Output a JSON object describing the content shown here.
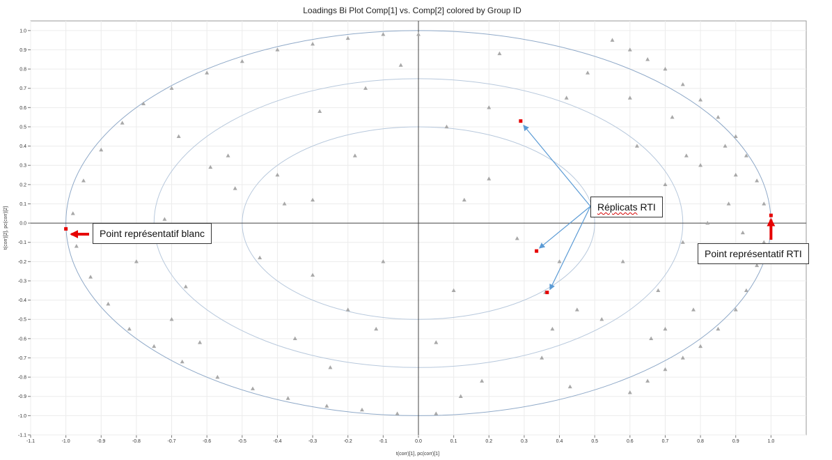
{
  "chart_data": {
    "type": "scatter",
    "title": "Loadings Bi Plot Comp[1] vs. Comp[2] colored by Group ID",
    "xlabel": "t(corr)[1], pc(corr)[1]",
    "ylabel": "t(corr)[2], pc(corr)[2]",
    "xlim": [
      -1.1,
      1.1
    ],
    "ylim": [
      -1.1,
      1.05
    ],
    "x_ticks": [
      -1.1,
      -1.0,
      -0.9,
      -0.8,
      -0.7,
      -0.6,
      -0.5,
      -0.4,
      -0.3,
      -0.2,
      -0.1,
      0.0,
      0.1,
      0.2,
      0.3,
      0.4,
      0.5,
      0.6,
      0.7,
      0.8,
      0.9,
      1.0
    ],
    "x_tick_labels": [
      "-1.1",
      "-1.0",
      "-0.9",
      "-0.8",
      "-0.7",
      "-0.6",
      "-0.5",
      "-0.4",
      "-0.3",
      "-0.2",
      "-0.1",
      "0.0",
      "0.1",
      "0.2",
      "0.3",
      "0.4",
      "0.5",
      "0.6",
      "0.7",
      "0.8",
      "0.9",
      "1.0"
    ],
    "y_ticks": [
      1.0,
      0.9,
      0.8,
      0.7,
      0.6,
      0.5,
      0.4,
      0.3,
      0.2,
      0.1,
      0.0,
      -0.1,
      -0.2,
      -0.3,
      -0.4,
      -0.5,
      -0.6,
      -0.7,
      -0.8,
      -0.9,
      -1.0,
      -1.1
    ],
    "y_tick_labels": [
      "1.0",
      "0.9",
      "0.8",
      "0.7",
      "0.6",
      "0.5",
      "0.4",
      "0.3",
      "0.2",
      "0.1",
      "0.0",
      "-0.1",
      "-0.2",
      "-0.3",
      "-0.4",
      "-0.5",
      "-0.6",
      "-0.7",
      "-0.8",
      "-0.9",
      "-1.0",
      "-1.1"
    ],
    "grid": true,
    "correlation_ellipse_radii": [
      1.0,
      0.75,
      0.5
    ],
    "series": [
      {
        "color": "#a8a8a8",
        "marker": "triangle",
        "points": [
          [
            -0.98,
            0.05
          ],
          [
            -0.97,
            -0.12
          ],
          [
            -0.95,
            0.22
          ],
          [
            -0.93,
            -0.28
          ],
          [
            -0.9,
            0.38
          ],
          [
            -0.88,
            -0.42
          ],
          [
            -0.84,
            0.52
          ],
          [
            -0.82,
            -0.55
          ],
          [
            -0.78,
            0.62
          ],
          [
            -0.75,
            -0.64
          ],
          [
            -0.7,
            0.7
          ],
          [
            -0.67,
            -0.72
          ],
          [
            -0.6,
            0.78
          ],
          [
            -0.57,
            -0.8
          ],
          [
            -0.5,
            0.84
          ],
          [
            -0.47,
            -0.86
          ],
          [
            -0.4,
            0.9
          ],
          [
            -0.37,
            -0.91
          ],
          [
            -0.3,
            0.93
          ],
          [
            -0.26,
            -0.95
          ],
          [
            -0.2,
            0.96
          ],
          [
            -0.16,
            -0.97
          ],
          [
            -0.1,
            0.98
          ],
          [
            -0.06,
            -0.99
          ],
          [
            -0.72,
            0.02
          ],
          [
            -0.66,
            -0.33
          ],
          [
            -0.59,
            0.29
          ],
          [
            -0.54,
            0.35
          ],
          [
            -0.45,
            -0.18
          ],
          [
            -0.4,
            0.25
          ],
          [
            -0.38,
            0.1
          ],
          [
            -0.3,
            0.12
          ],
          [
            -0.3,
            -0.27
          ],
          [
            -0.28,
            0.58
          ],
          [
            -0.18,
            0.35
          ],
          [
            -0.12,
            -0.55
          ],
          [
            -0.1,
            -0.2
          ],
          [
            -0.05,
            0.82
          ],
          [
            -0.2,
            -0.45
          ],
          [
            -0.62,
            -0.62
          ],
          [
            -0.52,
            0.18
          ],
          [
            -0.35,
            -0.6
          ],
          [
            -0.15,
            0.7
          ],
          [
            -0.68,
            0.45
          ],
          [
            -0.8,
            -0.2
          ],
          [
            -0.25,
            -0.75
          ],
          [
            -0.6,
            -0.1
          ],
          [
            -0.7,
            -0.5
          ],
          [
            0.05,
            -0.62
          ],
          [
            0.1,
            -0.35
          ],
          [
            0.13,
            0.12
          ],
          [
            0.2,
            0.23
          ],
          [
            0.23,
            0.88
          ],
          [
            0.18,
            -0.82
          ],
          [
            0.08,
            0.5
          ],
          [
            0.28,
            -0.08
          ],
          [
            0.2,
            0.6
          ],
          [
            0.12,
            -0.9
          ],
          [
            0.0,
            0.98
          ],
          [
            0.05,
            -0.99
          ],
          [
            0.55,
            0.95
          ],
          [
            0.6,
            0.9
          ],
          [
            0.65,
            0.85
          ],
          [
            0.7,
            0.8
          ],
          [
            0.75,
            0.72
          ],
          [
            0.8,
            0.64
          ],
          [
            0.85,
            0.55
          ],
          [
            0.9,
            0.45
          ],
          [
            0.93,
            0.35
          ],
          [
            0.96,
            0.22
          ],
          [
            0.98,
            0.1
          ],
          [
            0.98,
            -0.1
          ],
          [
            0.96,
            -0.22
          ],
          [
            0.93,
            -0.35
          ],
          [
            0.9,
            -0.45
          ],
          [
            0.85,
            -0.55
          ],
          [
            0.8,
            -0.64
          ],
          [
            0.75,
            -0.7
          ],
          [
            0.7,
            -0.76
          ],
          [
            0.65,
            -0.82
          ],
          [
            0.6,
            -0.88
          ],
          [
            0.62,
            0.4
          ],
          [
            0.7,
            0.2
          ],
          [
            0.75,
            -0.1
          ],
          [
            0.68,
            -0.35
          ],
          [
            0.8,
            0.3
          ],
          [
            0.85,
            -0.2
          ],
          [
            0.72,
            0.55
          ],
          [
            0.78,
            -0.45
          ],
          [
            0.88,
            0.1
          ],
          [
            0.64,
            0.05
          ],
          [
            0.66,
            -0.6
          ],
          [
            0.82,
            0.0
          ],
          [
            0.9,
            0.25
          ],
          [
            0.92,
            -0.05
          ],
          [
            0.58,
            -0.2
          ],
          [
            0.6,
            0.65
          ],
          [
            0.76,
            0.35
          ],
          [
            0.87,
            0.4
          ],
          [
            0.7,
            -0.55
          ],
          [
            0.52,
            -0.5
          ],
          [
            0.36,
            -0.36
          ],
          [
            0.4,
            -0.2
          ],
          [
            0.45,
            -0.45
          ],
          [
            0.38,
            -0.55
          ],
          [
            0.42,
            0.65
          ],
          [
            0.48,
            0.78
          ],
          [
            0.35,
            -0.7
          ],
          [
            0.43,
            -0.85
          ]
        ]
      },
      {
        "color": "#e60000",
        "marker": "square",
        "points": [
          [
            -1.0,
            -0.03
          ],
          [
            0.29,
            0.53
          ],
          [
            0.335,
            -0.145
          ],
          [
            0.365,
            -0.36
          ],
          [
            1.0,
            0.04
          ]
        ]
      }
    ],
    "annotations": [
      {
        "text": "Point représentatif blanc",
        "target": [
          -1.0,
          -0.03
        ]
      },
      {
        "text": "Réplicats RTI",
        "targets": [
          [
            0.29,
            0.53
          ],
          [
            0.335,
            -0.145
          ],
          [
            0.365,
            -0.36
          ]
        ]
      },
      {
        "text": "Point représentatif RTI",
        "target": [
          1.0,
          0.04
        ]
      }
    ]
  },
  "annotations": {
    "blank": "Point représentatif blanc",
    "replicates": "Réplicats",
    "replicates_tail": "RTI",
    "rti": "Point représentatif RTI"
  }
}
